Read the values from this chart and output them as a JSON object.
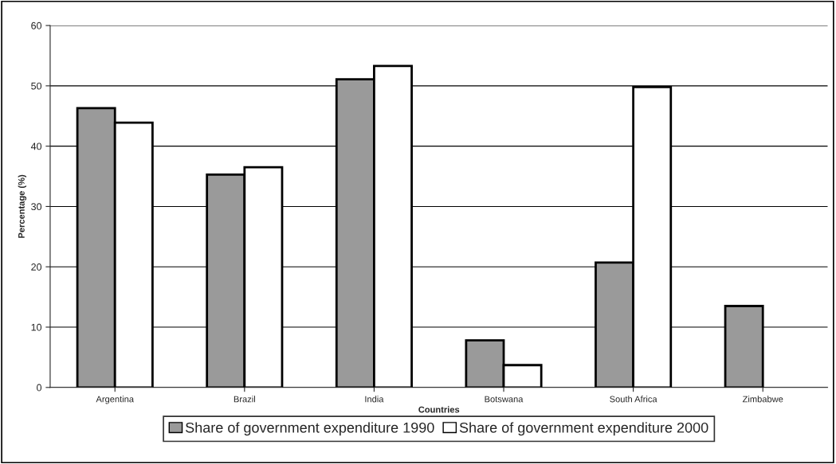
{
  "chart_data": {
    "type": "bar",
    "xlabel": "Countries",
    "ylabel": "Percentage (%)",
    "categories": [
      "Argentina",
      "Brazil",
      "India",
      "Botswana",
      "South Africa",
      "Zimbabwe"
    ],
    "series": [
      {
        "name": "Share of government expenditure 1990",
        "color": "#9a9a9a",
        "values": [
          46.3,
          35.3,
          51.1,
          7.8,
          20.7,
          13.5
        ]
      },
      {
        "name": "Share of government expenditure 2000",
        "color": "#ffffff",
        "values": [
          43.9,
          36.5,
          53.3,
          3.7,
          49.8,
          null
        ]
      }
    ],
    "ylim": [
      0,
      60
    ],
    "yticks": [
      0,
      10,
      20,
      30,
      40,
      50,
      60
    ],
    "grid": "y",
    "legend": "bottom"
  }
}
